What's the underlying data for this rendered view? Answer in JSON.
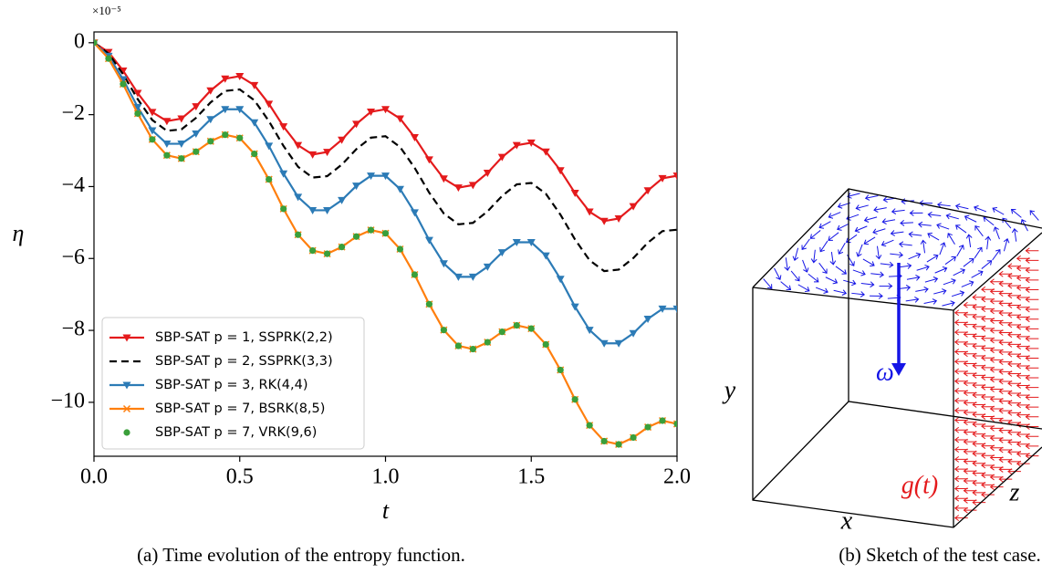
{
  "chart_data": {
    "type": "line",
    "y_scale_label": "×10⁻⁵",
    "x_label": "t",
    "y_label": "η",
    "xlim": [
      0,
      2
    ],
    "ylim": [
      -11.5,
      0.3
    ],
    "xticks": [
      {
        "value": 0,
        "label": "0.0"
      },
      {
        "value": 0.5,
        "label": "0.5"
      },
      {
        "value": 1,
        "label": "1.0"
      },
      {
        "value": 1.5,
        "label": "1.5"
      },
      {
        "value": 2,
        "label": "2.0"
      }
    ],
    "yticks": [
      0,
      {
        "value": -2,
        "label": "−2"
      },
      {
        "value": -4,
        "label": "−4"
      },
      {
        "value": -6,
        "label": "−6"
      },
      {
        "value": -8,
        "label": "−8"
      },
      {
        "value": -10,
        "label": "−10"
      }
    ],
    "grid": false,
    "legend": "lower left",
    "x": [
      0,
      0.05,
      0.1,
      0.15,
      0.2,
      0.25,
      0.3,
      0.35,
      0.4,
      0.45,
      0.5,
      0.55,
      0.6,
      0.65,
      0.7,
      0.75,
      0.8,
      0.85,
      0.9,
      0.95,
      1,
      1.05,
      1.1,
      1.15,
      1.2,
      1.25,
      1.3,
      1.35,
      1.4,
      1.45,
      1.5,
      1.55,
      1.6,
      1.65,
      1.7,
      1.75,
      1.8,
      1.85,
      1.9,
      1.95,
      2
    ],
    "series": [
      {
        "name": "SBP-SAT p = 1, SSPRK(2,2)",
        "color": "#e41a1c",
        "linestyle": "solid",
        "marker": "triangle-down",
        "values": [
          0,
          -0.26,
          -0.78,
          -1.4,
          -1.93,
          -2.18,
          -2.11,
          -1.77,
          -1.33,
          -1.0,
          -0.93,
          -1.18,
          -1.7,
          -2.33,
          -2.85,
          -3.11,
          -3.04,
          -2.7,
          -2.26,
          -1.92,
          -1.85,
          -2.11,
          -2.63,
          -3.25,
          -3.78,
          -4.03,
          -3.96,
          -3.62,
          -3.18,
          -2.85,
          -2.78,
          -3.03,
          -3.55,
          -4.18,
          -4.7,
          -4.96,
          -4.89,
          -4.55,
          -4.11,
          -3.77,
          -3.7
        ]
      },
      {
        "name": "SBP-SAT p = 2, SSPRK(3,3)",
        "color": "#000000",
        "linestyle": "dashed",
        "marker": null,
        "values": [
          0,
          -0.3,
          -0.88,
          -1.57,
          -2.15,
          -2.45,
          -2.41,
          -2.09,
          -1.66,
          -1.34,
          -1.3,
          -1.6,
          -2.18,
          -2.87,
          -3.45,
          -3.75,
          -3.71,
          -3.39,
          -2.96,
          -2.64,
          -2.6,
          -2.9,
          -3.48,
          -4.17,
          -4.75,
          -5.05,
          -5.01,
          -4.69,
          -4.26,
          -3.94,
          -3.9,
          -4.2,
          -4.78,
          -5.47,
          -6.05,
          -6.35,
          -6.31,
          -5.99,
          -5.56,
          -5.24,
          -5.2
        ]
      },
      {
        "name": "SBP-SAT p = 3, RK(4,4)",
        "color": "#2c7bb6",
        "linestyle": "solid",
        "marker": "triangle-down",
        "values": [
          0,
          -0.37,
          -1.02,
          -1.79,
          -2.44,
          -2.81,
          -2.81,
          -2.53,
          -2.13,
          -1.85,
          -1.85,
          -2.22,
          -2.87,
          -3.64,
          -4.29,
          -4.66,
          -4.66,
          -4.38,
          -3.98,
          -3.7,
          -3.7,
          -4.07,
          -4.72,
          -5.49,
          -6.14,
          -6.51,
          -6.51,
          -6.23,
          -5.83,
          -5.55,
          -5.55,
          -5.92,
          -6.57,
          -7.34,
          -7.99,
          -8.36,
          -8.36,
          -8.08,
          -7.68,
          -7.4,
          -7.4
        ]
      },
      {
        "name": "SBP-SAT p = 7, BSRK(8,5)",
        "color": "#ff7f0e",
        "linestyle": "solid",
        "marker": "x",
        "values": [
          0,
          -0.44,
          -1.15,
          -1.97,
          -2.69,
          -3.13,
          -3.22,
          -3.03,
          -2.74,
          -2.56,
          -2.65,
          -3.09,
          -3.8,
          -4.62,
          -5.34,
          -5.78,
          -5.87,
          -5.68,
          -5.39,
          -5.21,
          -5.3,
          -5.74,
          -6.45,
          -7.27,
          -7.99,
          -8.43,
          -8.52,
          -8.33,
          -8.04,
          -7.86,
          -7.95,
          -8.39,
          -9.1,
          -9.92,
          -10.64,
          -11.08,
          -11.17,
          -10.98,
          -10.69,
          -10.51,
          -10.6
        ]
      },
      {
        "name": "SBP-SAT p = 7, VRK(9,6)",
        "color": "#3a9f3a",
        "linestyle": "none",
        "marker": "circle",
        "values": [
          0,
          -0.44,
          -1.15,
          -1.97,
          -2.69,
          -3.13,
          -3.22,
          -3.03,
          -2.74,
          -2.56,
          -2.65,
          -3.09,
          -3.8,
          -4.62,
          -5.34,
          -5.78,
          -5.87,
          -5.68,
          -5.39,
          -5.21,
          -5.3,
          -5.74,
          -6.45,
          -7.27,
          -7.99,
          -8.43,
          -8.52,
          -8.33,
          -8.04,
          -7.86,
          -7.95,
          -8.39,
          -9.1,
          -9.92,
          -10.64,
          -11.08,
          -11.17,
          -10.98,
          -10.69,
          -10.51,
          -10.6
        ]
      }
    ]
  },
  "captions": [
    "(a) Time evolution of the entropy function.",
    "(b) Sketch of the test case."
  ],
  "sketch": {
    "y": "y",
    "x": "x",
    "z": "z",
    "omega": "ω",
    "g": "g(t)"
  }
}
